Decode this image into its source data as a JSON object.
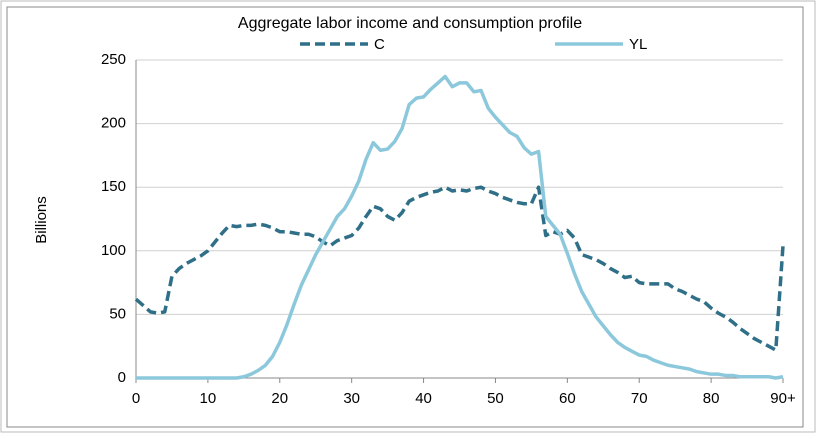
{
  "chart_data": {
    "type": "line",
    "title": "Aggregate labor income and consumption profile",
    "y_label": "Billions",
    "x": [
      0,
      1,
      2,
      3,
      4,
      5,
      6,
      7,
      8,
      9,
      10,
      11,
      12,
      13,
      14,
      15,
      16,
      17,
      18,
      19,
      20,
      21,
      22,
      23,
      24,
      25,
      26,
      27,
      28,
      29,
      30,
      31,
      32,
      33,
      34,
      35,
      36,
      37,
      38,
      39,
      40,
      41,
      42,
      43,
      44,
      45,
      46,
      47,
      48,
      49,
      50,
      51,
      52,
      53,
      54,
      55,
      56,
      57,
      58,
      59,
      60,
      61,
      62,
      63,
      64,
      65,
      66,
      67,
      68,
      69,
      70,
      71,
      72,
      73,
      74,
      75,
      76,
      77,
      78,
      79,
      80,
      81,
      82,
      83,
      84,
      85,
      86,
      87,
      88,
      89,
      90
    ],
    "series": [
      {
        "name": "C",
        "color": "#2f6f88",
        "dashed": true,
        "values": [
          62,
          57,
          52,
          51,
          52,
          80,
          86,
          90,
          93,
          96,
          100,
          107,
          114,
          120,
          119,
          120,
          120,
          121,
          120,
          118,
          115,
          115,
          114,
          113,
          113,
          111,
          107,
          104,
          108,
          110,
          112,
          118,
          127,
          135,
          133,
          127,
          124,
          130,
          139,
          142,
          144,
          146,
          147,
          150,
          147,
          148,
          147,
          149,
          150,
          147,
          145,
          142,
          140,
          138,
          137,
          137,
          150,
          112,
          115,
          113,
          116,
          110,
          97,
          95,
          93,
          90,
          86,
          83,
          79,
          80,
          75,
          74,
          74,
          74,
          74,
          70,
          68,
          65,
          62,
          60,
          55,
          51,
          48,
          44,
          39,
          35,
          31,
          28,
          25,
          22,
          104
        ]
      },
      {
        "name": "YL",
        "color": "#8cc8dc",
        "dashed": false,
        "values": [
          0,
          0,
          0,
          0,
          0,
          0,
          0,
          0,
          0,
          0,
          0,
          0,
          0,
          0,
          0,
          1,
          3,
          6,
          10,
          17,
          28,
          42,
          58,
          73,
          85,
          97,
          107,
          117,
          127,
          133,
          143,
          155,
          172,
          185,
          179,
          180,
          186,
          196,
          215,
          220,
          221,
          227,
          232,
          237,
          229,
          232,
          232,
          225,
          226,
          212,
          205,
          199,
          193,
          190,
          181,
          176,
          178,
          127,
          120,
          113,
          98,
          82,
          68,
          58,
          48,
          41,
          34,
          28,
          24,
          21,
          18,
          17,
          14,
          12,
          10,
          9,
          8,
          7,
          5,
          4,
          3,
          3,
          2,
          2,
          1,
          1,
          1,
          1,
          1,
          0,
          1
        ]
      }
    ],
    "xlim": [
      0,
      90
    ],
    "ylim": [
      0,
      250
    ],
    "xticks": [
      0,
      10,
      20,
      30,
      40,
      50,
      60,
      70,
      80,
      {
        "value": 90,
        "label": "90+"
      }
    ],
    "yticks": [
      0,
      50,
      100,
      150,
      200,
      250
    ],
    "grid": true
  }
}
